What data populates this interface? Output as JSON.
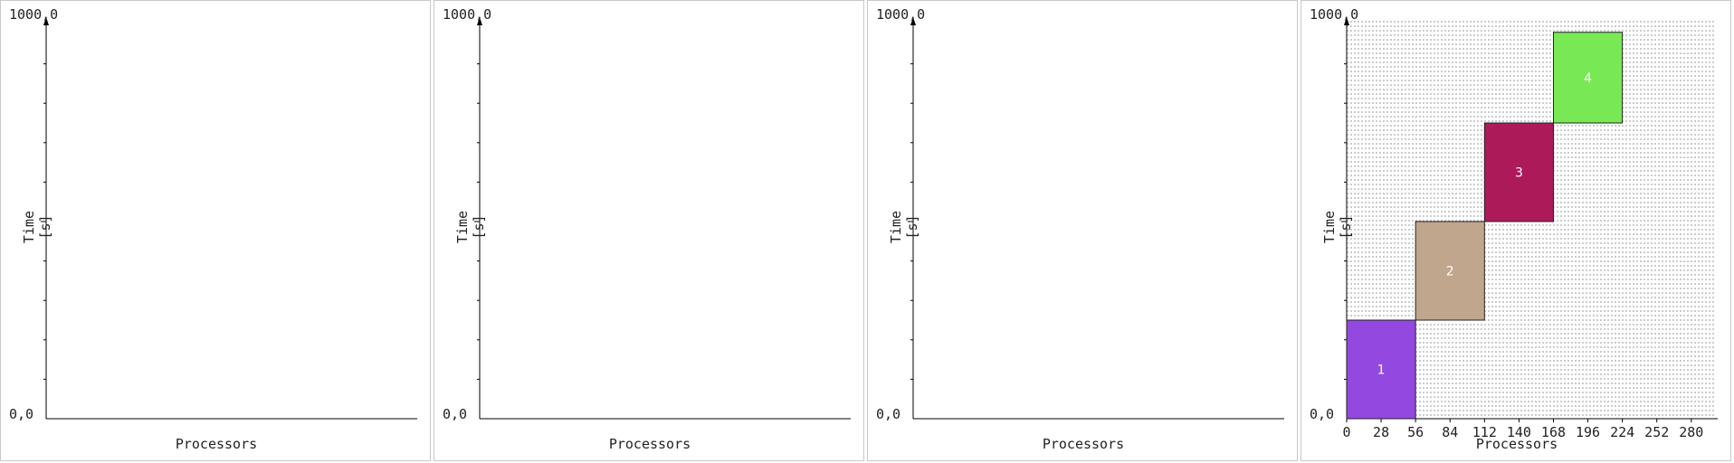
{
  "chart_data": [
    {
      "type": "gantt",
      "ylabel": "Time [s]",
      "xlabel": "Processors",
      "y_max_label": "1000,0",
      "y_min_label": "0,0",
      "ylim": [
        0,
        1000
      ],
      "tasks": []
    },
    {
      "type": "gantt",
      "ylabel": "Time [s]",
      "xlabel": "Processors",
      "y_max_label": "1000,0",
      "y_min_label": "0,0",
      "ylim": [
        0,
        1000
      ],
      "tasks": []
    },
    {
      "type": "gantt",
      "ylabel": "Time [s]",
      "xlabel": "Processors",
      "y_max_label": "1000,0",
      "y_min_label": "0,0",
      "ylim": [
        0,
        1000
      ],
      "tasks": []
    },
    {
      "type": "gantt",
      "ylabel": "Time [s]",
      "xlabel": "Processors",
      "y_max_label": "1000,0",
      "y_min_label": "0,0",
      "ylim": [
        0,
        1000
      ],
      "xlim": [
        0,
        300
      ],
      "x_ticks": [
        0,
        28,
        56,
        84,
        112,
        140,
        168,
        196,
        224,
        252,
        280
      ],
      "background": "hatched",
      "tasks": [
        {
          "label": "1",
          "proc_start": 0,
          "proc_end": 56,
          "t_start": 0,
          "t_end": 250,
          "color": "#9348df"
        },
        {
          "label": "2",
          "proc_start": 56,
          "proc_end": 112,
          "t_start": 250,
          "t_end": 500,
          "color": "#c0a68c"
        },
        {
          "label": "3",
          "proc_start": 112,
          "proc_end": 168,
          "t_start": 500,
          "t_end": 750,
          "color": "#ad1a5a"
        },
        {
          "label": "4",
          "proc_start": 168,
          "proc_end": 224,
          "t_start": 750,
          "t_end": 980,
          "color": "#78e854"
        }
      ]
    }
  ]
}
